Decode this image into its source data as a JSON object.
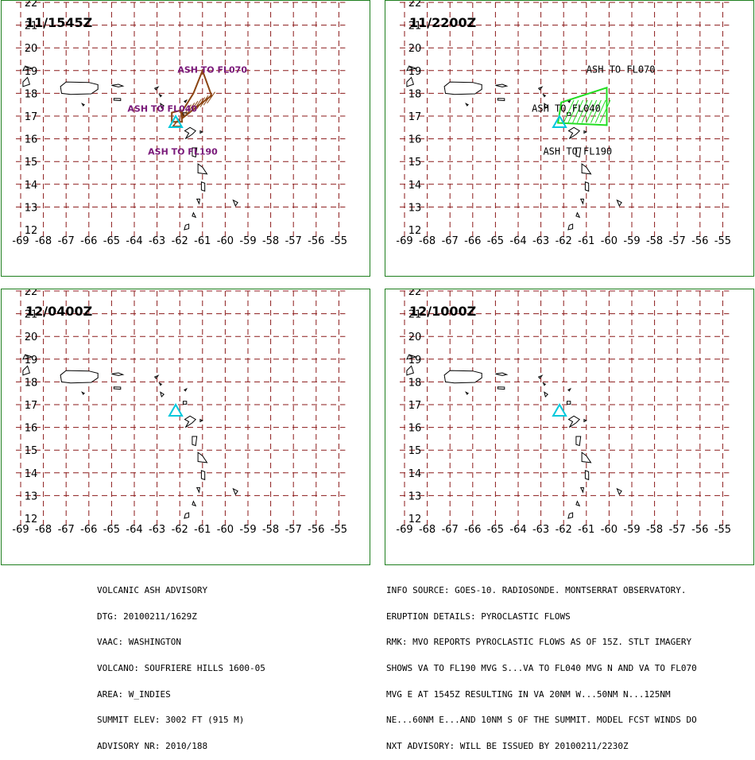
{
  "map": {
    "lon_ticks": [
      "-69",
      "-68",
      "-67",
      "-66",
      "-65",
      "-64",
      "-63",
      "-62",
      "-61",
      "-60",
      "-59",
      "-58",
      "-57",
      "-56",
      "-55"
    ],
    "lat_ticks": [
      "12",
      "13",
      "14",
      "15",
      "16",
      "17",
      "18",
      "19",
      "20",
      "21",
      "22"
    ],
    "colors": {
      "grid": "#8b1a1a",
      "frame": "#1f7f1f",
      "coast": "#000000",
      "volcano": "#00c8dc",
      "ash_obs": "#8b4513",
      "ash_fcst": "#22dd22",
      "label_obs": "#7a1a7a",
      "label_fcst": "#000000"
    }
  },
  "panels": [
    {
      "id": "p1",
      "time": "11/1545Z",
      "labels": [
        {
          "text": "ASH TO FL070",
          "lon": -62.1,
          "lat": 18.9
        },
        {
          "text": "ASH TO FL040",
          "lon": -64.3,
          "lat": 17.2
        },
        {
          "text": "ASH TO FL190",
          "lon": -63.4,
          "lat": 15.3
        }
      ]
    },
    {
      "id": "p2",
      "time": "11/2200Z",
      "labels": [
        {
          "text": "ASH TO FL070",
          "lon": -61.0,
          "lat": 18.9
        },
        {
          "text": "ASH TO FL040",
          "lon": -63.4,
          "lat": 17.2
        },
        {
          "text": "ASH TO FL190",
          "lon": -62.9,
          "lat": 15.3
        }
      ]
    },
    {
      "id": "p3",
      "time": "12/0400Z",
      "labels": []
    },
    {
      "id": "p4",
      "time": "12/1000Z",
      "labels": []
    }
  ],
  "advisory_left": [
    "VOLCANIC ASH ADVISORY",
    "DTG: 20100211/1629Z",
    "VAAC: WASHINGTON",
    "VOLCANO: SOUFRIERE HILLS 1600-05",
    "AREA: W_INDIES",
    "SUMMIT ELEV: 3002 FT (915 M)",
    "ADVISORY NR: 2010/188"
  ],
  "advisory_right": [
    "INFO SOURCE: GOES-10. RADIOSONDE. MONTSERRAT OBSERVATORY.",
    "ERUPTION DETAILS: PYROCLASTIC FLOWS",
    "RMK: MVO REPORTS PYROCLASTIC FLOWS AS OF 15Z. STLT IMAGERY",
    "SHOWS VA TO FL190 MVG S...VA TO FL040 MVG N AND VA TO FL070",
    "MVG E AT 1545Z RESULTING IN VA 20NM W...50NM N...125NM",
    "NE...60NM E...AND 10NM S OF THE SUMMIT. MODEL FCST WINDS DO",
    "NXT ADVISORY: WILL BE ISSUED BY 20100211/2230Z"
  ]
}
